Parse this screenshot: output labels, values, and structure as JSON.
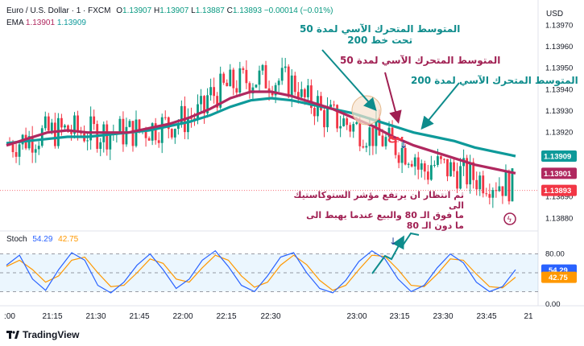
{
  "header": {
    "instrument": "Euro / U.S. Dollar · 1 · FXCM",
    "o_label": "O",
    "o": "1.13907",
    "h_label": "H",
    "h": "1.13907",
    "l_label": "L",
    "l": "1.13887",
    "c_label": "C",
    "c": "1.13893",
    "change": "−0.00014 (−0.01%)"
  },
  "ema_legend": {
    "label": "EMA",
    "v1": "1.13901",
    "v2": "1.13909"
  },
  "stoch_legend": {
    "label": "Stoch",
    "k": "54.29",
    "d": "42.75"
  },
  "currency": "USD",
  "brand": "TradingView",
  "colors": {
    "up": "#089981",
    "down": "#f23645",
    "ema50": "#b0285f",
    "ema200": "#0e9a9a",
    "stoch_k": "#2962ff",
    "stoch_d": "#ff9800",
    "annot_teal": "#0e8c8c",
    "annot_red": "#a01f52",
    "annot_blue": "#1c3f95"
  },
  "annotations": {
    "teal_top": "المتوسط المتحرك الآسي لمدة 50\nتحت خط 200",
    "red_mid": "المتوسط المتحرك الآسي لمدة 50",
    "teal_right": "المتوسط المتحرك الآسي لمدة 200",
    "sell": "بيع",
    "bottom": "ثم انتظار ان يرتفع مؤشر الستوكاستيك  الى\nما فوق الـ 80 والبيع عندما يهبط الى\nما دون الـ 80"
  },
  "chart_data": [
    {
      "type": "candlestick",
      "title": "Euro / U.S. Dollar · 1 · FXCM",
      "y_axis_ticks": [
        "1.13970",
        "1.13960",
        "1.13950",
        "1.13940",
        "1.13930",
        "1.13920",
        "1.13910",
        "1.13900",
        "1.13890",
        "1.13880"
      ],
      "ylim": [
        1.13876,
        1.13978
      ],
      "price_tags": [
        {
          "value": 1.13909,
          "label": "1.13909",
          "color": "#0e9a9a"
        },
        {
          "value": 1.13901,
          "label": "1.13901",
          "color": "#b0285f"
        },
        {
          "value": 1.13893,
          "label": "1.13893",
          "color": "#f23645"
        }
      ],
      "x_axis_ticks": [
        ":00",
        "21:15",
        "21:30",
        "21:45",
        "22:00",
        "22:15",
        "22:30",
        "23:00",
        "23:15",
        "23:30",
        "23:45",
        "21"
      ],
      "series": [
        {
          "name": "EMA 50",
          "values": [
            1.13914,
            1.13917,
            1.1392,
            1.13921,
            1.1392,
            1.1392,
            1.1392,
            1.13922,
            1.13924,
            1.13927,
            1.13931,
            1.13936,
            1.13939,
            1.13939,
            1.13937,
            1.13934,
            1.13931,
            1.13927,
            1.13923,
            1.13918,
            1.13914,
            1.13911,
            1.13908,
            1.13905,
            1.13903,
            1.13901
          ]
        },
        {
          "name": "EMA 200",
          "values": [
            1.13915,
            1.13916,
            1.13917,
            1.13918,
            1.13918,
            1.13919,
            1.1392,
            1.13921,
            1.13923,
            1.13925,
            1.13928,
            1.13932,
            1.13935,
            1.13936,
            1.13935,
            1.13933,
            1.13931,
            1.13929,
            1.13926,
            1.13923,
            1.1392,
            1.13918,
            1.13916,
            1.13913,
            1.13911,
            1.13909
          ]
        }
      ]
    },
    {
      "type": "line",
      "title": "Stoch",
      "y_axis_ticks": [
        "80.00",
        "0.00"
      ],
      "ylim": [
        0,
        100
      ],
      "band": [
        20,
        80
      ],
      "last_values": {
        "k": "54.29",
        "d": "42.75"
      },
      "series": [
        {
          "name": "Stoch %K",
          "values": [
            62,
            78,
            40,
            22,
            55,
            82,
            70,
            30,
            18,
            35,
            62,
            80,
            55,
            25,
            40,
            70,
            85,
            60,
            30,
            20,
            45,
            75,
            82,
            50,
            25,
            18,
            38,
            68,
            85,
            72,
            40,
            20,
            30,
            58,
            80,
            66,
            35,
            20,
            28,
            55
          ]
        },
        {
          "name": "Stoch %D",
          "values": [
            60,
            70,
            55,
            35,
            45,
            70,
            75,
            50,
            28,
            30,
            50,
            72,
            65,
            40,
            35,
            58,
            78,
            70,
            45,
            27,
            35,
            62,
            78,
            63,
            38,
            22,
            30,
            55,
            78,
            76,
            55,
            30,
            28,
            48,
            72,
            70,
            48,
            28,
            26,
            43
          ]
        }
      ]
    }
  ]
}
